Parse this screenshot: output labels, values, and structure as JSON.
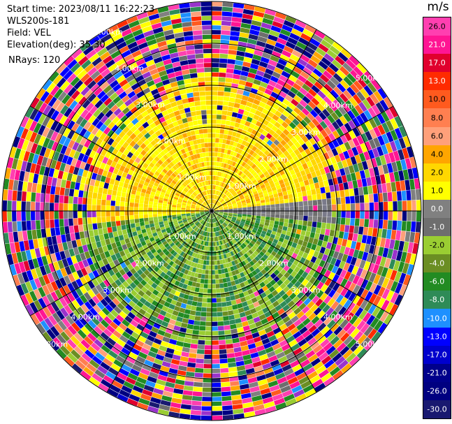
{
  "meta": {
    "start_time": "Start time: 2023/08/11 16:22:23",
    "station": "WLS200s-181",
    "field": "Field: VEL",
    "elevation": "Elevation(deg): 35.30",
    "nrays": "NRays: 120"
  },
  "colorbar": {
    "unit": "m/s",
    "ticks": [
      "26.0",
      "21.0",
      "17.0",
      "13.0",
      "10.0",
      "8.0",
      "6.0",
      "4.0",
      "2.0",
      "1.0",
      "0.0",
      "-1.0",
      "-2.0",
      "-4.0",
      "-6.0",
      "-8.0",
      "-10.0",
      "-13.0",
      "-17.0",
      "-21.0",
      "-26.0",
      "-30.0"
    ],
    "colors": [
      "#ff3fb0",
      "#ff1593",
      "#e0002d",
      "#ff2b00",
      "#ff5a1e",
      "#ff7f50",
      "#ffa07a",
      "#ffa500",
      "#ffd700",
      "#ffff00",
      "#808080",
      "#6e6e6e",
      "#9acd32",
      "#6b8e23",
      "#228b22",
      "#2e8b57",
      "#1e90ff",
      "#0000ff",
      "#0000cd",
      "#00008b",
      "#000080",
      "#191970"
    ]
  },
  "range_rings": [
    "1.00km",
    "2.00km",
    "3.00km",
    "4.00km",
    "5.00km"
  ],
  "ppi": {
    "nrays": 120,
    "max_range_km": 5.0
  }
}
